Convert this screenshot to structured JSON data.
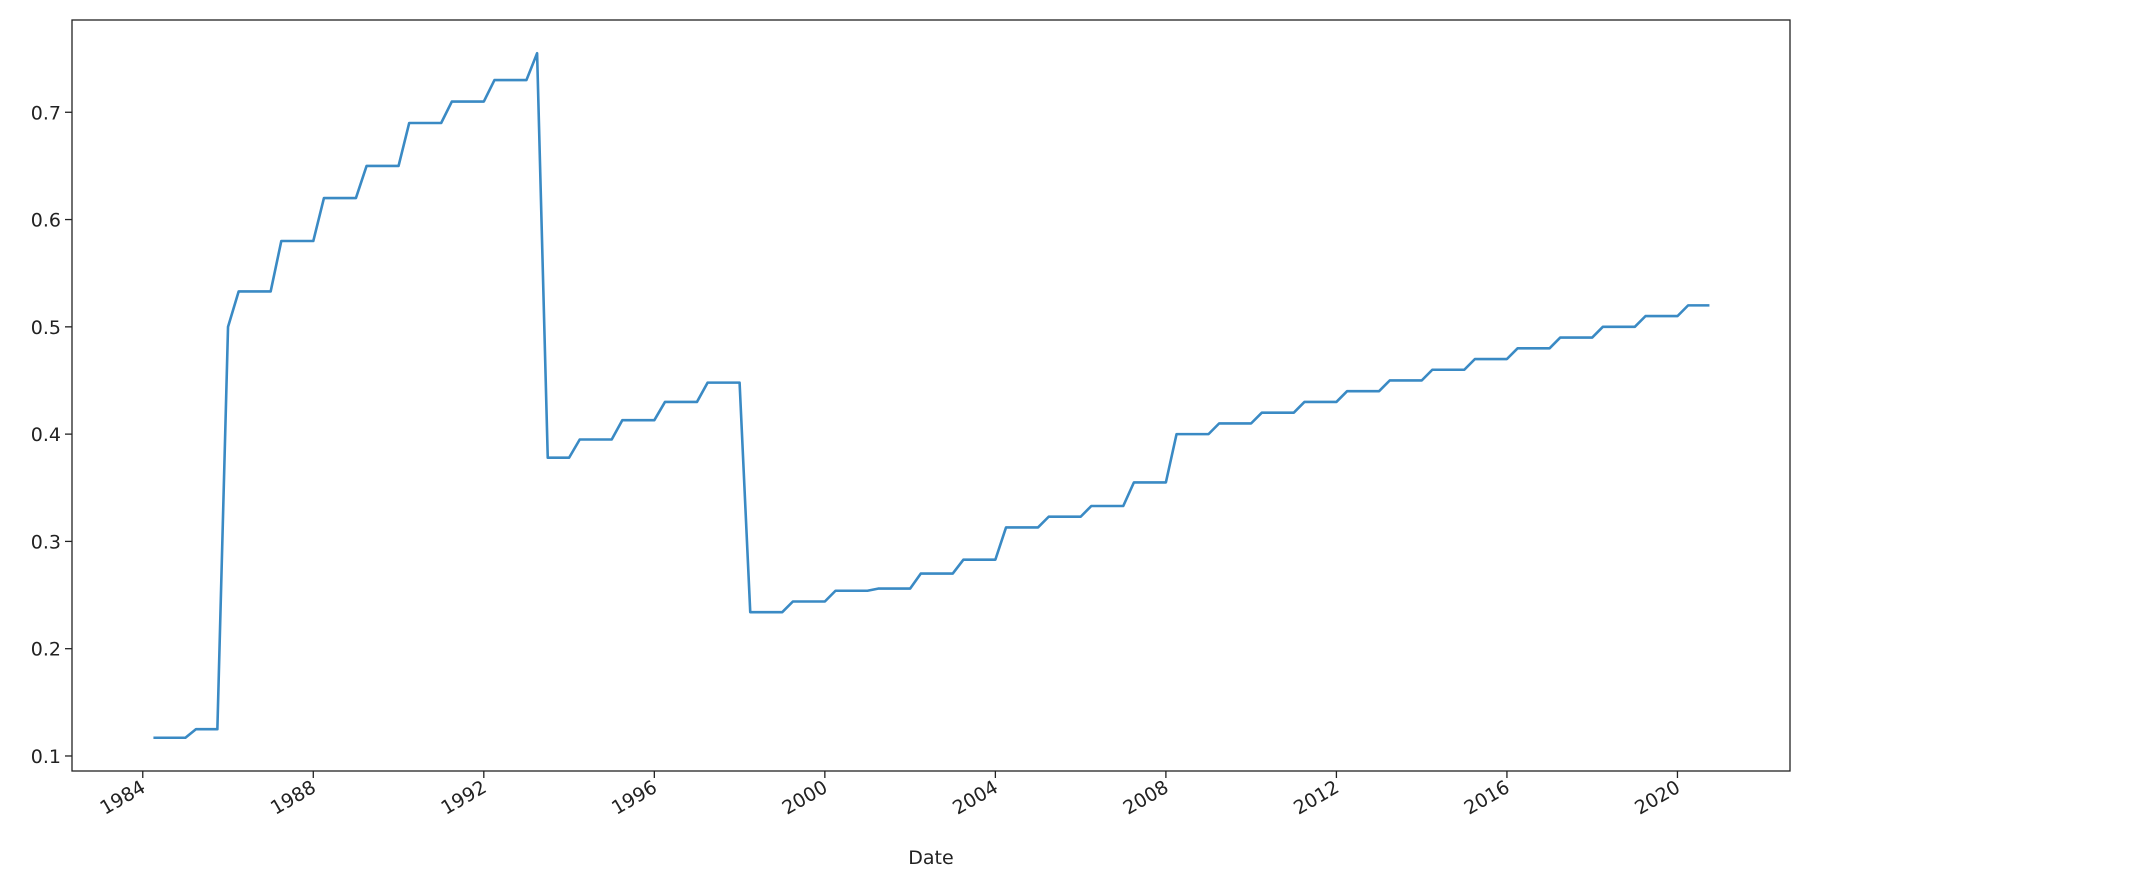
{
  "chart_data": {
    "type": "line",
    "x_label": "Date",
    "x": [
      1984.25,
      1985.0,
      1985.25,
      1985.75,
      1986.0,
      1986.25,
      1987.0,
      1987.25,
      1988.0,
      1988.25,
      1989.0,
      1989.25,
      1990.0,
      1990.25,
      1991.0,
      1991.25,
      1992.0,
      1992.25,
      1993.0,
      1993.25,
      1993.5,
      1994.0,
      1994.25,
      1995.0,
      1995.25,
      1996.0,
      1996.25,
      1997.0,
      1997.25,
      1998.0,
      1998.25,
      1999.0,
      1999.25,
      2000.0,
      2000.25,
      2001.0,
      2001.25,
      2002.0,
      2002.25,
      2003.0,
      2003.25,
      2004.0,
      2004.25,
      2005.0,
      2005.25,
      2006.0,
      2006.25,
      2007.0,
      2007.25,
      2008.0,
      2008.25,
      2009.0,
      2009.25,
      2010.0,
      2010.25,
      2011.0,
      2011.25,
      2012.0,
      2012.25,
      2013.0,
      2013.25,
      2014.0,
      2014.25,
      2015.0,
      2015.25,
      2016.0,
      2016.25,
      2017.0,
      2017.25,
      2018.0,
      2018.25,
      2019.0,
      2019.25,
      2020.0,
      2020.25,
      2020.75
    ],
    "values": [
      0.117,
      0.117,
      0.125,
      0.125,
      0.5,
      0.533,
      0.533,
      0.58,
      0.58,
      0.62,
      0.62,
      0.65,
      0.65,
      0.69,
      0.69,
      0.71,
      0.71,
      0.73,
      0.73,
      0.755,
      0.378,
      0.378,
      0.395,
      0.395,
      0.413,
      0.413,
      0.43,
      0.43,
      0.448,
      0.448,
      0.234,
      0.234,
      0.244,
      0.244,
      0.254,
      0.254,
      0.256,
      0.256,
      0.27,
      0.27,
      0.283,
      0.283,
      0.313,
      0.313,
      0.323,
      0.323,
      0.333,
      0.333,
      0.355,
      0.355,
      0.4,
      0.4,
      0.41,
      0.41,
      0.42,
      0.42,
      0.43,
      0.43,
      0.44,
      0.44,
      0.45,
      0.45,
      0.46,
      0.46,
      0.47,
      0.47,
      0.48,
      0.48,
      0.49,
      0.49,
      0.5,
      0.5,
      0.51,
      0.51,
      0.52,
      0.52
    ],
    "color": "#3a8ac4",
    "xlim": [
      1982.34,
      2022.64
    ],
    "xticks": [
      1984,
      1988,
      1992,
      1996,
      2000,
      2004,
      2008,
      2012,
      2016,
      2020
    ],
    "ylim": [
      0.086,
      0.786
    ],
    "yticks": [
      0.1,
      0.2,
      0.3,
      0.4,
      0.5,
      0.6,
      0.7
    ]
  }
}
